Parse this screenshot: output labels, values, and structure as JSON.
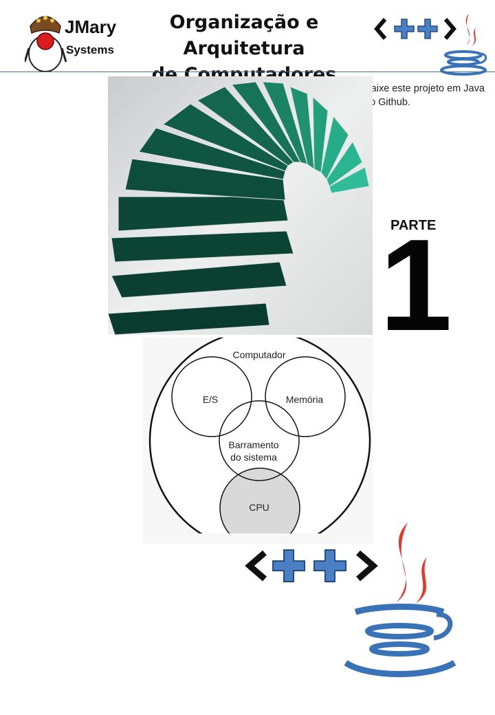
{
  "brand": {
    "name_line1": "JMary",
    "name_line2": "Systems"
  },
  "header": {
    "title_line1": "Organização e Arquitetura",
    "title_line2": "de Computadores"
  },
  "github": {
    "text": "Baixe este projeto em Java no Github.",
    "icon": "github-icon"
  },
  "parte": {
    "label": "PARTE",
    "number": "1"
  },
  "diagram": {
    "outer": "Computador",
    "io": "E/S",
    "memory": "Memória",
    "bus_line1": "Barramento",
    "bus_line2": "do sistema",
    "cpu": "CPU"
  },
  "colors": {
    "header_rule": "#3f6fa0",
    "cpp_plus": "#4a7fc4",
    "java_flame": "#e03a2f",
    "java_cup": "#3a72b8",
    "stairs_green": "#0b4a3a",
    "cpu_fill": "#d9d9d9"
  }
}
